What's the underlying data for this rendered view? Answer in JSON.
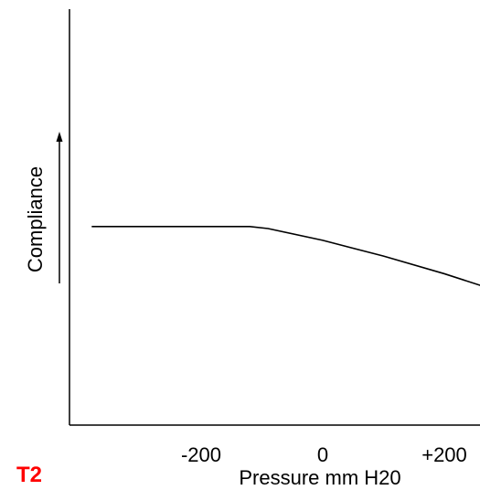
{
  "chart_data": {
    "type": "line",
    "title": "",
    "panel_label": "T2",
    "xlabel": "Pressure mm H20",
    "ylabel": "Compliance",
    "xlim": [
      -380,
      260
    ],
    "xticks": [
      {
        "value": -200,
        "label": "-200"
      },
      {
        "value": 0,
        "label": "0"
      },
      {
        "value": 200,
        "label": "+200"
      }
    ],
    "yticks": [],
    "grid": false,
    "legend": "none",
    "series": [
      {
        "x": [
          -380,
          -120,
          -90,
          0,
          100,
          200,
          260
        ],
        "y": [
          0.505,
          0.505,
          0.5,
          0.47,
          0.43,
          0.385,
          0.355
        ]
      }
    ],
    "colors": {
      "line": "#000000",
      "axes": "#000000",
      "panel_label": "#ff0000"
    }
  }
}
